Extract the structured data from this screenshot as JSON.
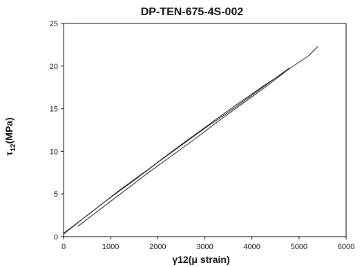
{
  "chart_data": {
    "type": "line",
    "title": "DP-TEN-675-4S-002",
    "xlabel": "γ12(μ strain)",
    "ylabel_main": "τ",
    "ylabel_sub": "12",
    "ylabel_unit": "(MPa)",
    "xlim": [
      0,
      6000
    ],
    "ylim": [
      0,
      25
    ],
    "x_ticks": [
      0,
      1000,
      2000,
      3000,
      4000,
      5000,
      6000
    ],
    "y_ticks": [
      0,
      5,
      10,
      15,
      20,
      25
    ],
    "grid": false,
    "legend": "none",
    "series": [
      {
        "x": [
          0,
          500,
          1000,
          1500,
          2000,
          2500,
          3000,
          3500,
          4000,
          4500,
          4800
        ],
        "y": [
          0.3,
          2.5,
          4.6,
          6.6,
          8.7,
          10.7,
          12.7,
          14.6,
          16.6,
          18.6,
          19.8
        ]
      },
      {
        "x": [
          300,
          800,
          1300,
          1800,
          2300,
          2800,
          3300,
          3800,
          4300,
          4700
        ],
        "y": [
          1.2,
          3.3,
          5.4,
          7.5,
          9.5,
          11.5,
          13.6,
          15.6,
          17.6,
          19.3
        ]
      },
      {
        "x": [
          0,
          600,
          1200,
          1800,
          2400,
          3000,
          3600,
          4200,
          4800,
          5200,
          5400
        ],
        "y": [
          0.4,
          2.9,
          5.5,
          7.9,
          10.4,
          12.8,
          15.2,
          17.5,
          19.7,
          21.2,
          22.3
        ]
      }
    ],
    "colors": {
      "line": "#1a1a1a",
      "axis": "#000000"
    }
  }
}
